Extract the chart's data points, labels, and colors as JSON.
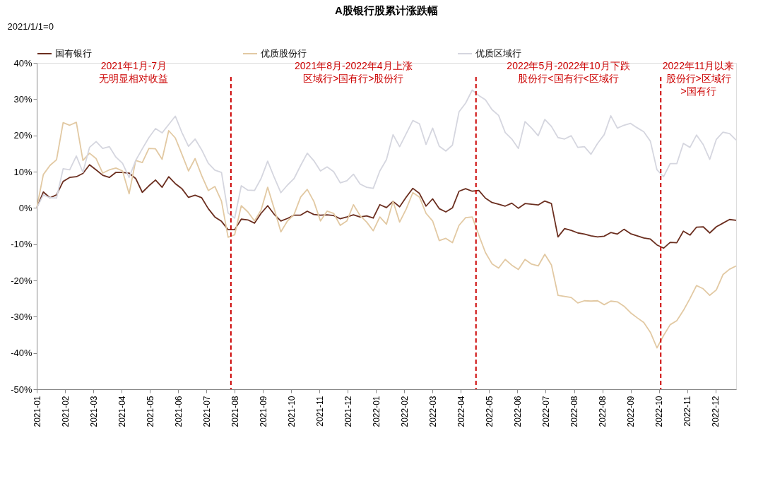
{
  "chart_data": {
    "type": "line",
    "title": "A股银行股累计涨跌幅",
    "ylabel": "2021/1/1=0",
    "x": [
      "2021-01-08",
      "2021-01-15",
      "2021-01-22",
      "2021-01-29",
      "2021-02-05",
      "2021-02-12",
      "2021-02-19",
      "2021-02-26",
      "2021-03-05",
      "2021-03-12",
      "2021-03-19",
      "2021-03-26",
      "2021-04-02",
      "2021-04-09",
      "2021-04-16",
      "2021-04-23",
      "2021-04-30",
      "2021-05-07",
      "2021-05-14",
      "2021-05-21",
      "2021-05-28",
      "2021-06-04",
      "2021-06-11",
      "2021-06-18",
      "2021-06-25",
      "2021-07-02",
      "2021-07-09",
      "2021-07-16",
      "2021-07-23",
      "2021-07-30",
      "2021-08-06",
      "2021-08-13",
      "2021-08-20",
      "2021-08-27",
      "2021-09-03",
      "2021-09-10",
      "2021-09-17",
      "2021-09-24",
      "2021-10-01",
      "2021-10-08",
      "2021-10-15",
      "2021-10-22",
      "2021-10-29",
      "2021-11-05",
      "2021-11-12",
      "2021-11-19",
      "2021-11-26",
      "2021-12-03",
      "2021-12-10",
      "2021-12-17",
      "2021-12-24",
      "2021-12-31",
      "2022-01-07",
      "2022-01-14",
      "2022-01-21",
      "2022-01-28",
      "2022-02-04",
      "2022-02-11",
      "2022-02-18",
      "2022-02-25",
      "2022-03-04",
      "2022-03-11",
      "2022-03-18",
      "2022-03-25",
      "2022-04-01",
      "2022-04-08",
      "2022-04-15",
      "2022-04-22",
      "2022-04-29",
      "2022-05-06",
      "2022-05-13",
      "2022-05-20",
      "2022-05-27",
      "2022-06-03",
      "2022-06-10",
      "2022-06-17",
      "2022-06-24",
      "2022-07-01",
      "2022-07-08",
      "2022-07-15",
      "2022-07-22",
      "2022-07-29",
      "2022-08-05",
      "2022-08-12",
      "2022-08-19",
      "2022-08-26",
      "2022-09-02",
      "2022-09-09",
      "2022-09-16",
      "2022-09-23",
      "2022-09-30",
      "2022-10-07",
      "2022-10-14",
      "2022-10-21",
      "2022-10-28",
      "2022-11-04",
      "2022-11-11",
      "2022-11-18",
      "2022-11-25",
      "2022-12-02",
      "2022-12-09",
      "2022-12-16",
      "2022-12-23",
      "2022-12-30",
      "2023-01-06",
      "2023-01-13",
      "2023-01-20"
    ],
    "series": [
      {
        "name": "国有银行",
        "color": "#6b2e1f",
        "values": [
          0,
          4.4,
          2.8,
          3.6,
          7.3,
          8.4,
          8.6,
          9.5,
          11.9,
          10.5,
          9.0,
          8.4,
          9.8,
          9.8,
          9.6,
          8.1,
          4.3,
          6.1,
          7.7,
          5.7,
          8.6,
          6.7,
          5.3,
          2.9,
          3.5,
          2.8,
          -0.2,
          -2.5,
          -3.7,
          -6.0,
          -6.0,
          -3.1,
          -3.3,
          -4.2,
          -1.5,
          0.6,
          -1.8,
          -3.6,
          -2.9,
          -2.0,
          -2.0,
          -0.9,
          -1.8,
          -2.0,
          -1.9,
          -2.1,
          -3.0,
          -2.5,
          -1.9,
          -2.5,
          -2.2,
          -2.8,
          0.9,
          0.1,
          1.8,
          0.3,
          3.0,
          5.4,
          4.0,
          0.5,
          2.5,
          -0.2,
          -1.1,
          0,
          4.6,
          5.3,
          4.6,
          4.8,
          2.7,
          1.5,
          1.0,
          0.5,
          1.3,
          -0.1,
          1.2,
          1.0,
          0.8,
          1.9,
          1.2,
          -8.0,
          -5.7,
          -6.2,
          -6.9,
          -7.2,
          -7.7,
          -8.0,
          -7.8,
          -6.8,
          -7.2,
          -5.9,
          -7.1,
          -7.7,
          -8.3,
          -8.6,
          -10.2,
          -11.1,
          -9.5,
          -9.6,
          -6.4,
          -7.5,
          -5.3,
          -5.2,
          -6.9,
          -5.2,
          -4.2,
          -3.2,
          -3.4
        ]
      },
      {
        "name": "优质股份行",
        "color": "#e2c9a3",
        "values": [
          0,
          9.2,
          11.7,
          13.3,
          23.5,
          22.8,
          23.6,
          13.1,
          15.1,
          13.6,
          9.6,
          10.5,
          11.0,
          10.2,
          3.9,
          13.1,
          12.5,
          16.4,
          16.3,
          13.4,
          21.3,
          19.3,
          14.8,
          10.2,
          13.6,
          8.9,
          4.8,
          5.9,
          1.9,
          -8.1,
          -7.4,
          0.6,
          -1.1,
          -3.6,
          -0.6,
          5.7,
          -0.3,
          -6.6,
          -3.6,
          -1.8,
          3.0,
          5.1,
          1.8,
          -3.6,
          -0.9,
          -1.5,
          -4.8,
          -3.6,
          0.9,
          -2.1,
          -3.9,
          -6.3,
          -2.5,
          -4.5,
          1.8,
          -3.9,
          -0.3,
          4.2,
          3.0,
          -1.5,
          -3.6,
          -9.0,
          -8.4,
          -9.6,
          -4.8,
          -2.7,
          -2.5,
          -7.5,
          -12.3,
          -15.4,
          -16.6,
          -14.2,
          -15.8,
          -17.0,
          -14.2,
          -15.5,
          -16.0,
          -12.8,
          -15.7,
          -24.1,
          -24.4,
          -24.7,
          -26.2,
          -25.6,
          -25.7,
          -25.6,
          -26.7,
          -25.7,
          -25.9,
          -27.1,
          -28.9,
          -30.3,
          -31.6,
          -34.3,
          -38.6,
          -35.2,
          -32.2,
          -31.1,
          -28.3,
          -25.0,
          -21.4,
          -22.3,
          -24.1,
          -22.6,
          -18.4,
          -16.9,
          -16.0
        ]
      },
      {
        "name": "优质区域行",
        "color": "#d5d6df",
        "values": [
          0,
          3.6,
          2.8,
          2.7,
          10.8,
          10.5,
          14.3,
          9.8,
          16.7,
          18.3,
          16.4,
          16.9,
          14.0,
          12.3,
          8.4,
          13.1,
          16.3,
          19.4,
          21.9,
          20.7,
          23.0,
          25.3,
          20.8,
          17.0,
          19.0,
          16.0,
          12.3,
          10.4,
          9.8,
          -1.4,
          -2.8,
          6.1,
          4.9,
          4.8,
          8.1,
          12.9,
          8.4,
          4.2,
          6.3,
          8.1,
          11.7,
          15.1,
          13.0,
          10.2,
          11.3,
          10.0,
          6.9,
          7.5,
          9.3,
          6.6,
          5.7,
          5.4,
          10.2,
          13.3,
          20.2,
          16.9,
          20.5,
          24.1,
          23.2,
          17.5,
          22.0,
          17.0,
          15.7,
          17.3,
          26.5,
          28.9,
          32.5,
          31.0,
          29.8,
          27.1,
          25.5,
          20.8,
          19.0,
          16.4,
          23.8,
          22.0,
          19.9,
          24.4,
          22.5,
          19.4,
          19.0,
          19.9,
          16.7,
          16.9,
          14.8,
          17.8,
          20.2,
          25.4,
          22.0,
          22.8,
          23.3,
          22.1,
          21.0,
          18.4,
          10.5,
          8.6,
          12.2,
          12.2,
          17.8,
          16.7,
          20.1,
          17.5,
          13.4,
          18.9,
          20.9,
          20.5,
          18.7
        ]
      }
    ],
    "xlim": [
      "2021-01-08",
      "2023-01-20"
    ],
    "xticks": [
      {
        "value": "2021-01-08",
        "label": "2021-01"
      },
      {
        "value": "2021-02-07",
        "label": "2021-02"
      },
      {
        "value": "2021-03-09",
        "label": "2021-03"
      },
      {
        "value": "2021-04-08",
        "label": "2021-04"
      },
      {
        "value": "2021-05-08",
        "label": "2021-05"
      },
      {
        "value": "2021-06-07",
        "label": "2021-06"
      },
      {
        "value": "2021-07-07",
        "label": "2021-07"
      },
      {
        "value": "2021-08-06",
        "label": "2021-08"
      },
      {
        "value": "2021-09-05",
        "label": "2021-09"
      },
      {
        "value": "2021-10-05",
        "label": "2021-10"
      },
      {
        "value": "2021-11-04",
        "label": "2021-11"
      },
      {
        "value": "2021-12-04",
        "label": "2021-12"
      },
      {
        "value": "2022-01-03",
        "label": "2022-01"
      },
      {
        "value": "2022-02-02",
        "label": "2022-02"
      },
      {
        "value": "2022-03-04",
        "label": "2022-03"
      },
      {
        "value": "2022-04-03",
        "label": "2022-04"
      },
      {
        "value": "2022-05-03",
        "label": "2022-05"
      },
      {
        "value": "2022-06-02",
        "label": "2022-06"
      },
      {
        "value": "2022-07-02",
        "label": "2022-07"
      },
      {
        "value": "2022-08-01",
        "label": "2022-08"
      },
      {
        "value": "2022-08-31",
        "label": "2022-08"
      },
      {
        "value": "2022-09-30",
        "label": "2022-09"
      },
      {
        "value": "2022-10-30",
        "label": "2022-10"
      },
      {
        "value": "2022-11-29",
        "label": "2022-11"
      },
      {
        "value": "2022-12-29",
        "label": "2022-12"
      }
    ],
    "ylim": [
      -50,
      40
    ],
    "yticks": [
      {
        "value": -50,
        "label": "-50%"
      },
      {
        "value": -40,
        "label": "-40%"
      },
      {
        "value": -30,
        "label": "-30%"
      },
      {
        "value": -20,
        "label": "-20%"
      },
      {
        "value": -10,
        "label": "-10%"
      },
      {
        "value": 0,
        "label": "0%"
      },
      {
        "value": 10,
        "label": "10%"
      },
      {
        "value": 20,
        "label": "20%"
      },
      {
        "value": 30,
        "label": "30%"
      },
      {
        "value": 40,
        "label": "40%"
      }
    ],
    "ref_lines": [
      {
        "axis": "x",
        "value": "2021-08-02",
        "color": "#cc0000",
        "line_style": "dashed"
      },
      {
        "axis": "x",
        "value": "2022-04-19",
        "color": "#cc0000",
        "line_style": "dashed"
      },
      {
        "axis": "x",
        "value": "2022-11-01",
        "color": "#cc0000",
        "line_style": "dashed"
      }
    ],
    "annotations": [
      "2021年1月-7月",
      "无明显相对收益",
      "2021年8月-2022年4月上涨",
      "区域行>国有行>股份行",
      "2022年5月-2022年10月下跌",
      "股份行<国有行<区域行",
      "2022年11月以来",
      "股份行>区域行",
      ">国有行"
    ],
    "legend": "top",
    "grid": false,
    "marker": "none",
    "line_style": "solid"
  }
}
